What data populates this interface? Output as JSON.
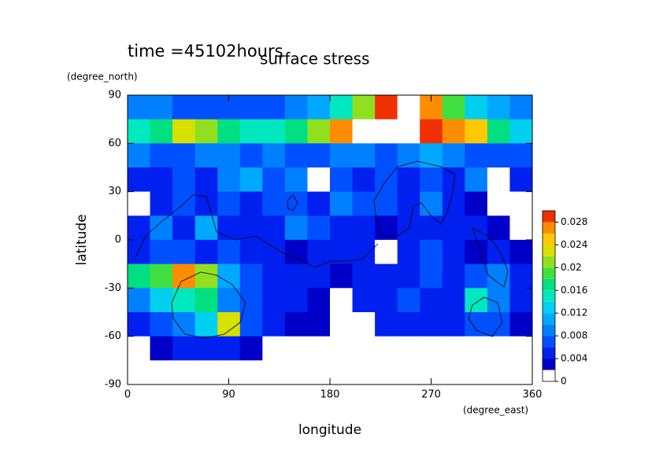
{
  "chart_data": {
    "type": "contour",
    "title": "surface stress",
    "subtitle": "time =45102hours",
    "x_label": "longitude",
    "x_unit": "(degree_east)",
    "y_label": "latitude",
    "y_unit": "(degree_north)",
    "x": [
      10,
      30,
      50,
      70,
      90,
      110,
      130,
      150,
      170,
      190,
      210,
      230,
      250,
      270,
      290,
      310,
      330,
      350
    ],
    "y": [
      82.5,
      67.5,
      52.5,
      37.5,
      22.5,
      7.5,
      -7.5,
      -22.5,
      -37.5,
      -52.5,
      -67.5,
      -82.5
    ],
    "z": [
      [
        0.008,
        0.008,
        0.006,
        0.006,
        0.006,
        0.006,
        0.006,
        0.008,
        0.01,
        0.014,
        0.02,
        0.028,
        0.032,
        0.026,
        0.018,
        0.012,
        0.01,
        0.008
      ],
      [
        0.014,
        0.016,
        0.022,
        0.02,
        0.016,
        0.014,
        0.014,
        0.016,
        0.02,
        0.026,
        0.032,
        0.032,
        0.03,
        0.028,
        0.026,
        0.024,
        0.016,
        0.012
      ],
      [
        0.008,
        0.006,
        0.006,
        0.008,
        0.008,
        0.006,
        0.008,
        0.006,
        0.006,
        0.008,
        0.008,
        0.006,
        0.008,
        0.01,
        0.008,
        0.006,
        0.006,
        0.006
      ],
      [
        0.004,
        0.004,
        0.006,
        0.004,
        0.008,
        0.01,
        0.006,
        0.008,
        0,
        0.006,
        0.004,
        0.006,
        0.004,
        0.006,
        0.004,
        0.008,
        0,
        0.004
      ],
      [
        0,
        0.004,
        0.006,
        0.004,
        0.006,
        0.004,
        0.006,
        0.006,
        0.004,
        0.008,
        0.006,
        0.006,
        0.004,
        0.008,
        0.004,
        0.002,
        0,
        0
      ],
      [
        0.004,
        0.008,
        0.004,
        0.01,
        0.004,
        0.004,
        0.004,
        0.008,
        0.006,
        0.004,
        0.004,
        0.002,
        0.004,
        0.004,
        0.004,
        0.004,
        0.002,
        0
      ],
      [
        0.004,
        0.006,
        0.006,
        0.004,
        0.006,
        0.004,
        0.004,
        0.002,
        0.004,
        0.004,
        0.004,
        0,
        0.004,
        0.006,
        0.004,
        0.002,
        0.004,
        0.002
      ],
      [
        0.016,
        0.018,
        0.026,
        0.02,
        0.01,
        0.006,
        0.004,
        0.004,
        0.004,
        0.002,
        0.004,
        0.004,
        0.004,
        0.006,
        0.004,
        0.006,
        0.008,
        0.004
      ],
      [
        0.008,
        0.012,
        0.014,
        0.016,
        0.008,
        0.006,
        0.004,
        0.004,
        0.002,
        0,
        0.004,
        0.004,
        0.006,
        0.004,
        0.004,
        0.014,
        0.008,
        0.004
      ],
      [
        0.004,
        0.006,
        0.008,
        0.012,
        0.022,
        0.006,
        0.004,
        0.002,
        0.002,
        0,
        0,
        0.004,
        0.004,
        0.004,
        0.004,
        0.006,
        0.006,
        0.002
      ],
      [
        0,
        0.002,
        0.004,
        0.004,
        0.004,
        0.002,
        0,
        0,
        0,
        0,
        0,
        0,
        0,
        0,
        0,
        0,
        0,
        0
      ],
      [
        0,
        0,
        0,
        0,
        0,
        0,
        0,
        0,
        0,
        0,
        0,
        0,
        0,
        0,
        0,
        0,
        0,
        0
      ]
    ],
    "xlim": [
      0,
      360
    ],
    "xticks": [
      0,
      90,
      180,
      270,
      360
    ],
    "ylim": [
      -90,
      90
    ],
    "yticks": [
      -90,
      -60,
      -30,
      0,
      30,
      60,
      90
    ],
    "levels": [
      0,
      0.002,
      0.004,
      0.006,
      0.008,
      0.01,
      0.012,
      0.014,
      0.016,
      0.018,
      0.02,
      0.022,
      0.024,
      0.026,
      0.028,
      0.03
    ],
    "colors": [
      "#ffffff",
      "#0000c8",
      "#0020f0",
      "#0050ff",
      "#0080ff",
      "#00a8ff",
      "#00d0f0",
      "#00e8c0",
      "#00e080",
      "#40e040",
      "#90e020",
      "#d8e000",
      "#ffc800",
      "#ff8c00",
      "#f03000"
    ],
    "over_color": "#ffffff",
    "colorbar_lim": [
      0,
      0.03
    ],
    "colorbar_ticks": [
      0,
      0.004,
      0.008,
      0.012,
      0.016,
      0.02,
      0.024,
      0.028
    ]
  }
}
